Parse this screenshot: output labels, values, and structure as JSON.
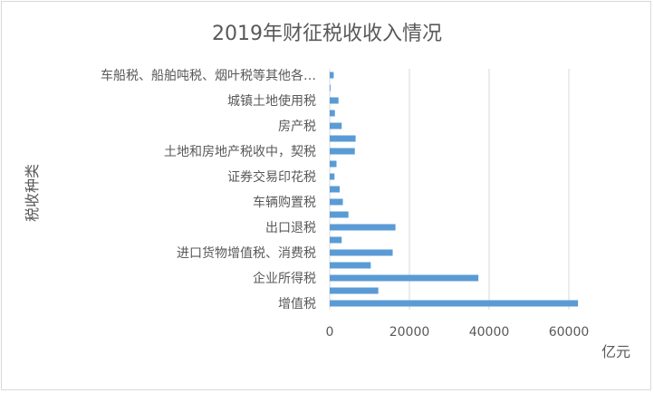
{
  "chart_data": {
    "type": "bar",
    "orientation": "horizontal",
    "title": "2019年财征税收收入情况",
    "xlabel": "亿元",
    "ylabel": "税收种类",
    "xlim": [
      0,
      70000
    ],
    "xticks": [
      0,
      20000,
      40000,
      60000
    ],
    "tick_labels": [
      "0",
      "20000",
      "40000",
      "60000"
    ],
    "grid": true,
    "color": "#5b9bd5",
    "categories": [
      "增值税",
      "",
      "企业所得税",
      "",
      "进口货物增值税、消费税",
      "",
      "出口退税",
      "",
      "车辆购置税",
      "",
      "证券交易印花税",
      "",
      "土地和房地产税收中，契税",
      "",
      "房产税",
      "",
      "城镇土地使用税",
      "",
      "车船税、船舶吨税、烟叶税等其他各…"
    ],
    "values": [
      62300,
      12200,
      37300,
      10300,
      15800,
      3000,
      16500,
      4700,
      3300,
      2500,
      1200,
      1700,
      6300,
      6500,
      3000,
      1300,
      2200,
      200,
      1000
    ]
  }
}
